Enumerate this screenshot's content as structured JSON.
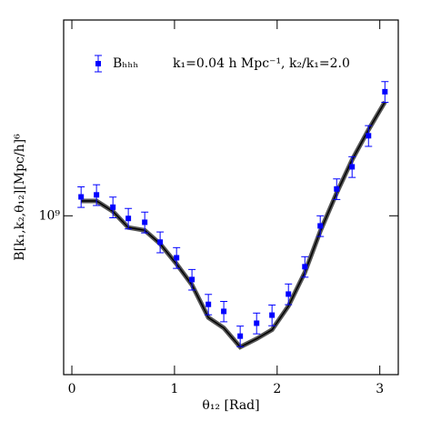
{
  "chart_data": {
    "type": "scatter",
    "annotation": "k₁=0.04 h Mpc⁻¹, k₂/k₁=2.0",
    "x_label": "θ₁₂ [Rad]",
    "y_label": "B[k₁,k₂,θ₁₂][Mpc/h]⁶",
    "x": [
      0.09,
      0.24,
      0.4,
      0.55,
      0.71,
      0.86,
      1.02,
      1.17,
      1.33,
      1.48,
      1.64,
      1.8,
      1.95,
      2.11,
      2.27,
      2.42,
      2.58,
      2.73,
      2.89,
      3.05
    ],
    "series": [
      {
        "name": "Bₕₕₕ",
        "color": "#0000ff",
        "values": [
          1090000000,
          1100000000,
          1040000000,
          988000000,
          971000000,
          887000000,
          826000000,
          748000000,
          668000000,
          647000000,
          578000000,
          613000000,
          636000000,
          700000000,
          793000000,
          955000000,
          1130000000,
          1250000000,
          1440000000,
          1760000000
        ],
        "errors": [
          51000000,
          52000000,
          49000000,
          46000000,
          46000000,
          42000000,
          39000000,
          35000000,
          31000000,
          30000000,
          27000000,
          29000000,
          30000000,
          33000000,
          37000000,
          45000000,
          53000000,
          59000000,
          68000000,
          83000000
        ]
      }
    ],
    "model": {
      "color": "#000000",
      "values": [
        1070000000,
        1070000000,
        1020000000,
        948000000,
        936000000,
        880000000,
        803000000,
        730000000,
        629000000,
        600000000,
        550000000,
        571000000,
        595000000,
        663000000,
        773000000,
        932000000,
        1110000000,
        1290000000,
        1480000000,
        1680000000
      ]
    },
    "xlim": [
      -0.08,
      3.18
    ],
    "xticks": [
      0,
      1,
      2,
      3
    ],
    "ylim": [
      485000000,
      2440000000
    ],
    "log_y": true,
    "yticks": [
      {
        "value": 1000000000,
        "label": "10⁹"
      }
    ]
  }
}
